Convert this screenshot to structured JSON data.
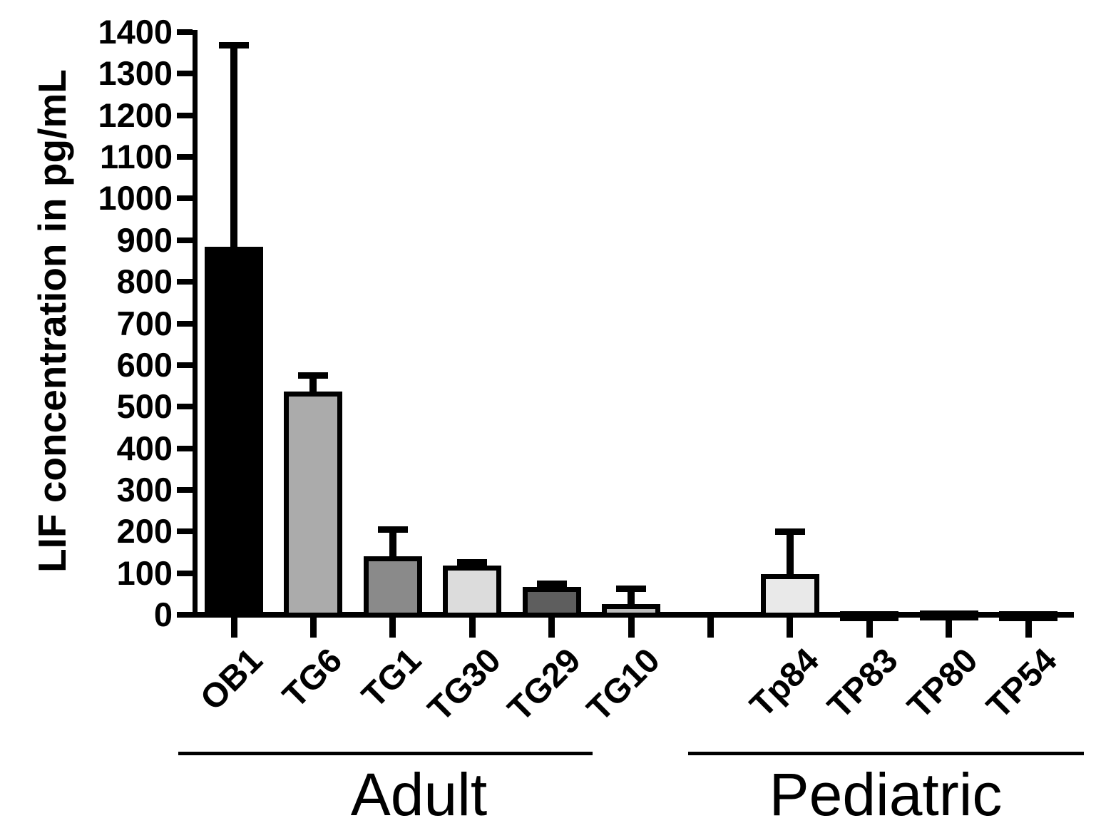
{
  "figure": {
    "background": "#ffffff",
    "text_color": "#000000",
    "axis_color": "#000000"
  },
  "chart_data": {
    "type": "bar",
    "title": "",
    "xlabel": "",
    "ylabel": "LIF concentration in pg/mL",
    "ylim": [
      0,
      1400
    ],
    "yticks": [
      0,
      100,
      200,
      300,
      400,
      500,
      600,
      700,
      800,
      900,
      1000,
      1100,
      1200,
      1300,
      1400
    ],
    "grid": false,
    "legend": false,
    "error_bars": "upper SD whiskers with caps",
    "bar_outline_color": "#000000",
    "groups": [
      {
        "label": "Adult",
        "bars": [
          {
            "label": "OB1",
            "value": 885,
            "error_top": 1370,
            "fill": "#000000"
          },
          {
            "label": "TG6",
            "value": 537,
            "error_top": 576,
            "fill": "#ababab"
          },
          {
            "label": "TG1",
            "value": 140,
            "error_top": 205,
            "fill": "#8a8a8a"
          },
          {
            "label": "TG30",
            "value": 118,
            "error_top": 127,
            "fill": "#dcdcdc"
          },
          {
            "label": "TG29",
            "value": 67,
            "error_top": 76,
            "fill": "#5e5e5e"
          },
          {
            "label": "TG10",
            "value": 25,
            "error_top": 63,
            "fill": "#bdbdbd"
          }
        ]
      },
      {
        "label": "Pediatric",
        "bars": [
          {
            "label": "Tp84",
            "value": 97,
            "error_top": 201,
            "fill": "#e9e9e9"
          },
          {
            "label": "TP83",
            "value": 8,
            "error_top": null,
            "fill": "#bdbdbd"
          },
          {
            "label": "TP80",
            "value": 11,
            "error_top": null,
            "fill": "#b3b3b3"
          },
          {
            "label": "TP54",
            "value": 9,
            "error_top": null,
            "fill": "#b3b3b3"
          }
        ]
      }
    ]
  }
}
